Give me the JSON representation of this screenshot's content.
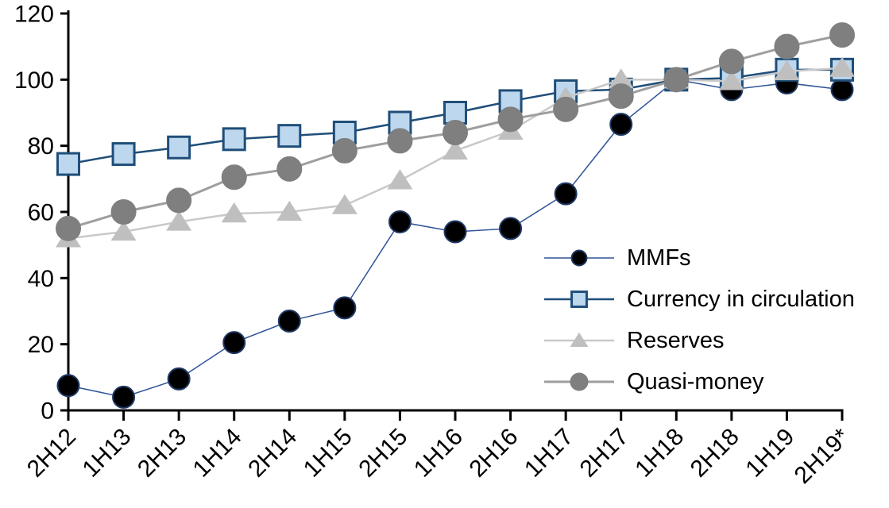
{
  "chart_data": {
    "type": "line",
    "title": "",
    "xlabel": "",
    "ylabel": "",
    "categories": [
      "2H12",
      "1H13",
      "2H13",
      "1H14",
      "2H14",
      "1H15",
      "2H15",
      "1H16",
      "2H16",
      "1H17",
      "2H17",
      "1H18",
      "2H18",
      "1H19",
      "2H19*"
    ],
    "series": [
      {
        "name": "MMFs",
        "marker": "circle",
        "marker_size": 27,
        "fill": "#000000",
        "stroke": "#1F3864",
        "line_color": "#2F5496",
        "line_width": 1.5,
        "values": [
          7.5,
          4,
          9.5,
          20.5,
          27,
          31,
          57,
          54,
          55,
          65.5,
          86.5,
          100,
          97,
          99,
          97
        ]
      },
      {
        "name": "Currency in circulation",
        "marker": "square",
        "marker_size": 27,
        "fill": "#BDD7EE",
        "stroke": "#1F4E79",
        "line_color": "#1F4E79",
        "line_width": 2.5,
        "values": [
          74.5,
          77.5,
          79.5,
          82,
          83,
          84,
          87,
          90,
          93.5,
          96.5,
          97,
          100,
          100.5,
          103,
          103
        ]
      },
      {
        "name": "Reserves",
        "marker": "triangle",
        "marker_size": 28,
        "fill": "#BFBFBF",
        "stroke": "#BFBFBF",
        "line_color": "#C9C9C9",
        "line_width": 2.5,
        "values": [
          52,
          54,
          57,
          59.5,
          60,
          62,
          69.5,
          78.5,
          84.5,
          94.5,
          100,
          100,
          99.5,
          102.5,
          103.5
        ]
      },
      {
        "name": "Quasi-money",
        "marker": "circle",
        "marker_size": 30,
        "fill": "#7F7F7F",
        "stroke": "#7F7F7F",
        "line_color": "#9E9E9E",
        "line_width": 3,
        "values": [
          55,
          60,
          63.5,
          70.5,
          73,
          78.5,
          81.5,
          84,
          88,
          91,
          95,
          100,
          105.5,
          110,
          113.5
        ]
      }
    ],
    "ylim": [
      0,
      120
    ],
    "yticks": [
      0,
      20,
      40,
      60,
      80,
      100,
      120
    ],
    "grid": false,
    "legend_position": "center-right",
    "axis_color": "#000000"
  }
}
